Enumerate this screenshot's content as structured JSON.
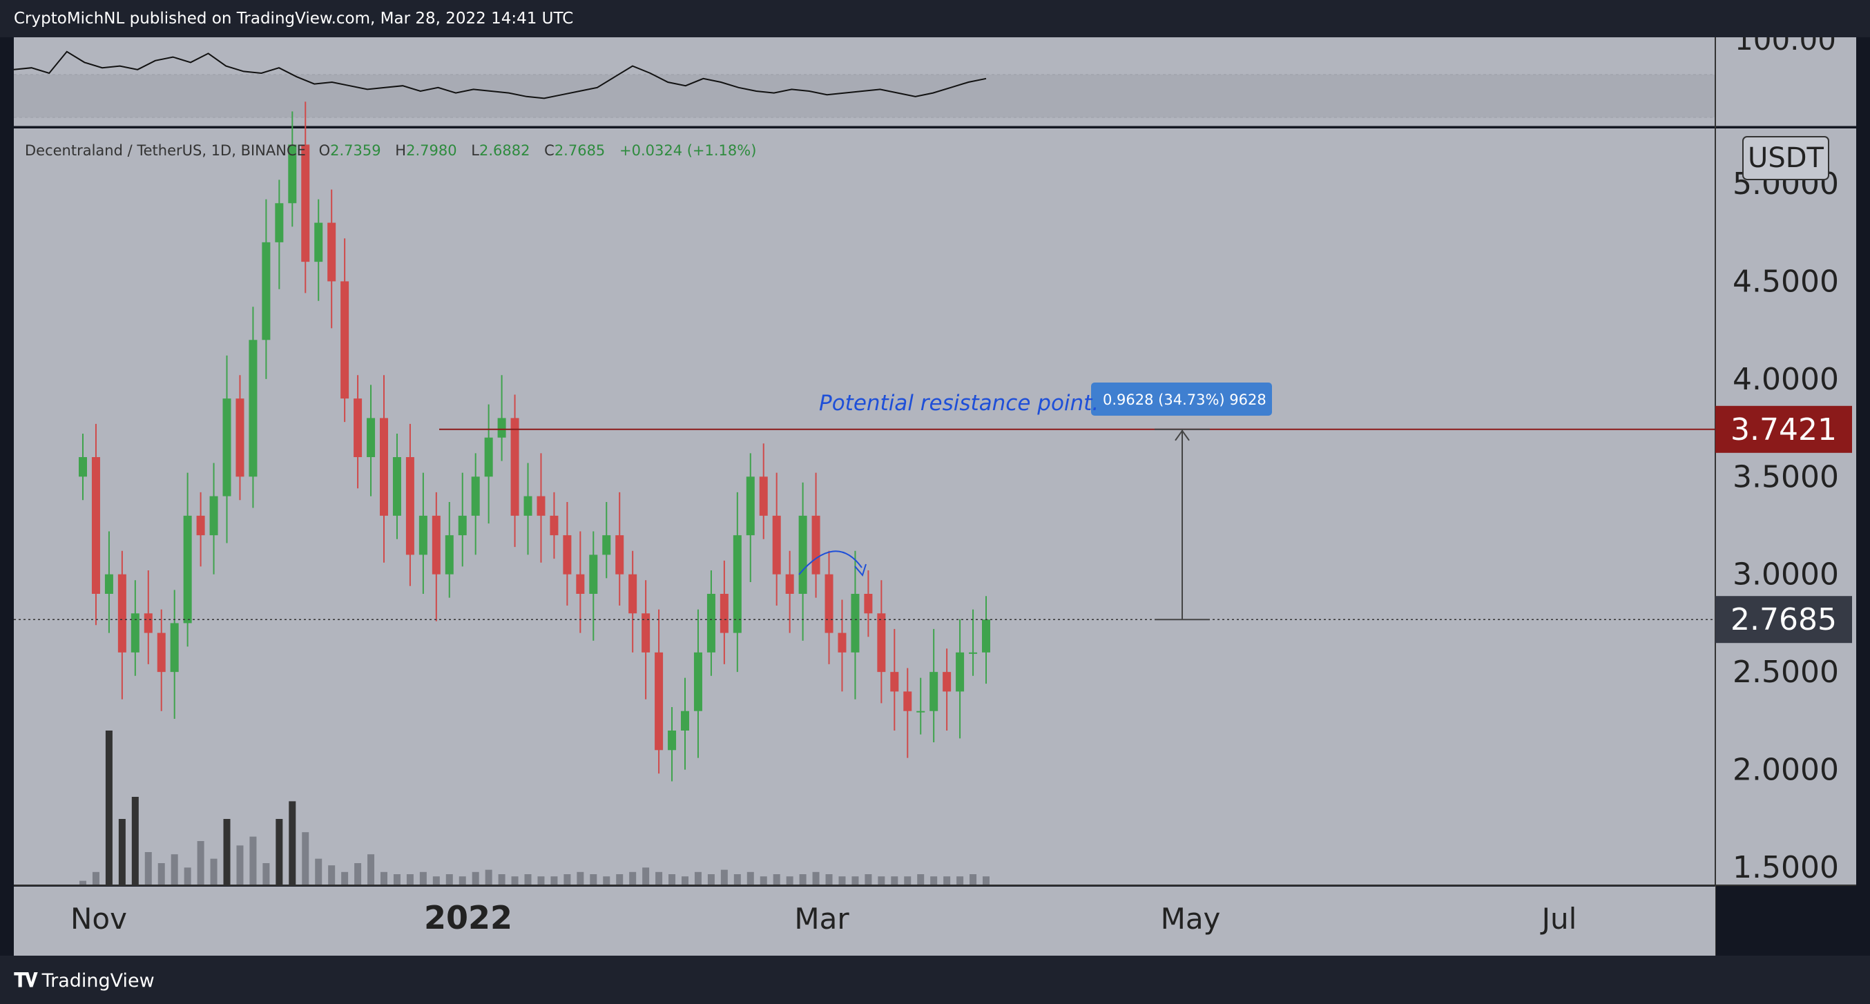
{
  "header": {
    "publisher_line": "CryptoMichNL published on TradingView.com, Mar 28, 2022 14:41 UTC"
  },
  "footer": {
    "brand_label": "TradingView",
    "brand_icon": "tradingview-logo-icon"
  },
  "colors": {
    "up": "#3fa34d",
    "down": "#d04a4a",
    "background": "#b2b5be",
    "resistance": "#8b1a1a",
    "annotation": "#1e4fd8"
  },
  "chart_data": {
    "type": "candlestick",
    "symbol_line": "Decentraland / TetherUS, 1D, BINANCE",
    "ohlc": {
      "o_label": "O",
      "o": "2.7359",
      "h_label": "H",
      "h": "2.7980",
      "l_label": "L",
      "l": "2.6882",
      "c_label": "C",
      "c": "2.7685",
      "change": "+0.0324 (+1.18%)"
    },
    "currency_label": "USDT",
    "y_ticks": [
      "5.0000",
      "4.5000",
      "4.0000",
      "3.5000",
      "3.0000",
      "2.5000",
      "2.0000",
      "1.5000"
    ],
    "rsi_axis_label": "100.00",
    "x_ticks": [
      "Nov",
      "2022",
      "Mar",
      "May",
      "Jul"
    ],
    "resistance": {
      "price": 3.7421,
      "label": "3.7421"
    },
    "last_price": {
      "price": 2.7685,
      "label": "2.7685"
    },
    "annotation": "Potential resistance point.",
    "measure_label": "0.9628 (34.73%) 9628",
    "ylim": [
      1.5,
      5.2
    ],
    "date_range": [
      "2021-10-29",
      "2022-03-28"
    ],
    "close_series": [
      3.6,
      2.9,
      3.0,
      2.6,
      2.8,
      2.7,
      2.5,
      2.75,
      3.3,
      3.2,
      3.4,
      3.9,
      3.5,
      4.2,
      4.7,
      4.9,
      5.2,
      4.6,
      4.8,
      4.5,
      3.9,
      3.6,
      3.8,
      3.3,
      3.6,
      3.1,
      3.3,
      3.0,
      3.2,
      3.3,
      3.5,
      3.7,
      3.8,
      3.3,
      3.4,
      3.3,
      3.2,
      3.0,
      2.9,
      3.1,
      3.2,
      3.0,
      2.8,
      2.6,
      2.1,
      2.2,
      2.3,
      2.6,
      2.9,
      2.7,
      3.2,
      3.5,
      3.3,
      3.0,
      2.9,
      3.3,
      3.0,
      2.7,
      2.6,
      2.9,
      2.8,
      2.5,
      2.4,
      2.3,
      2.3,
      2.5,
      2.4,
      2.6,
      2.6,
      2.7685
    ],
    "volume_series": [
      2,
      6,
      70,
      30,
      40,
      15,
      10,
      14,
      8,
      20,
      12,
      30,
      18,
      22,
      10,
      30,
      38,
      24,
      12,
      9,
      6,
      10,
      14,
      6,
      5,
      5,
      6,
      4,
      5,
      4,
      6,
      7,
      5,
      4,
      5,
      4,
      4,
      5,
      6,
      5,
      4,
      5,
      6,
      8,
      6,
      5,
      4,
      6,
      5,
      7,
      5,
      6,
      4,
      5,
      4,
      5,
      6,
      5,
      4,
      4,
      5,
      4,
      4,
      4,
      5,
      4,
      4,
      4,
      5,
      4
    ],
    "rsi_series": [
      62,
      63,
      60,
      72,
      66,
      63,
      64,
      62,
      67,
      69,
      66,
      71,
      64,
      61,
      60,
      63,
      58,
      54,
      55,
      53,
      51,
      52,
      53,
      50,
      52,
      49,
      51,
      50,
      49,
      47,
      46,
      48,
      50,
      52,
      58,
      64,
      60,
      55,
      53,
      57,
      55,
      52,
      50,
      49,
      51,
      50,
      48,
      49,
      50,
      51,
      49,
      47,
      49,
      52,
      55,
      57
    ]
  }
}
